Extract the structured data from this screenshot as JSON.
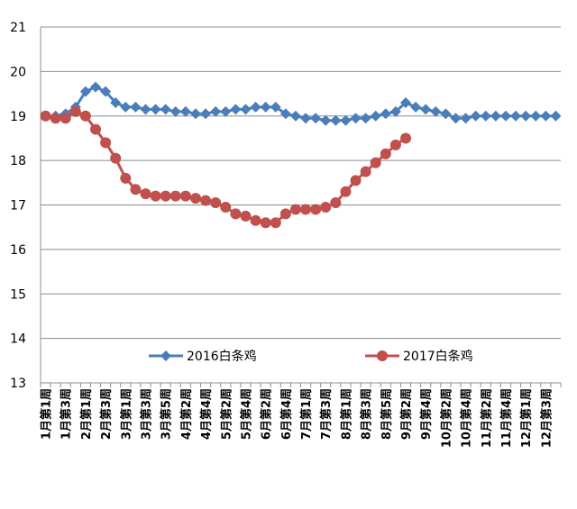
{
  "chart_data": {
    "type": "line",
    "categories": [
      "1月第1周",
      null,
      "1月第3周",
      null,
      "2月第1周",
      null,
      "2月第3周",
      null,
      "3月第1周",
      null,
      "3月第3周",
      null,
      "3月第5周",
      null,
      "4月第2周",
      null,
      "4月第4周",
      null,
      "5月第2周",
      null,
      "5月第4周",
      null,
      "6月第2周",
      null,
      "6月第4周",
      null,
      "7月第1周",
      null,
      "7月第3周",
      null,
      "8月第1周",
      null,
      "8月第3周",
      null,
      "8月第5周",
      null,
      "9月第2周",
      null,
      "9月第4周",
      null,
      "10月第2周",
      null,
      "10月第4周",
      null,
      "11月第2周",
      null,
      "11月第4周",
      null,
      "12月第1周",
      null,
      "12月第3周",
      null
    ],
    "series": [
      {
        "name": "2016白条鸡",
        "color": "#4a7ebb",
        "marker": "diamond",
        "values": [
          19.0,
          19.0,
          19.05,
          19.2,
          19.55,
          19.65,
          19.55,
          19.3,
          19.2,
          19.2,
          19.15,
          19.15,
          19.15,
          19.1,
          19.1,
          19.05,
          19.05,
          19.1,
          19.1,
          19.15,
          19.15,
          19.2,
          19.2,
          19.2,
          19.05,
          19.0,
          18.95,
          18.95,
          18.9,
          18.9,
          18.9,
          18.95,
          18.95,
          19.0,
          19.05,
          19.1,
          19.3,
          19.2,
          19.15,
          19.1,
          19.05,
          18.95,
          18.95,
          19.0,
          19.0,
          19.0,
          19.0,
          19.0,
          19.0,
          19.0,
          19.0,
          19.0
        ]
      },
      {
        "name": "2017白条鸡",
        "color": "#c0504d",
        "marker": "circle",
        "values": [
          19.0,
          18.95,
          18.95,
          19.1,
          19.0,
          18.7,
          18.4,
          18.05,
          17.6,
          17.35,
          17.25,
          17.2,
          17.2,
          17.2,
          17.2,
          17.15,
          17.1,
          17.05,
          16.95,
          16.8,
          16.75,
          16.65,
          16.6,
          16.6,
          16.8,
          16.9,
          16.9,
          16.9,
          16.95,
          17.05,
          17.3,
          17.55,
          17.75,
          17.95,
          18.15,
          18.35,
          18.5,
          null,
          null,
          null,
          null,
          null,
          null,
          null,
          null,
          null,
          null,
          null,
          null,
          null,
          null,
          null
        ]
      }
    ],
    "ylim": [
      13,
      21
    ],
    "yticks": [
      13,
      14,
      15,
      16,
      17,
      18,
      19,
      20,
      21
    ],
    "grid": true,
    "legend": "bottom"
  }
}
